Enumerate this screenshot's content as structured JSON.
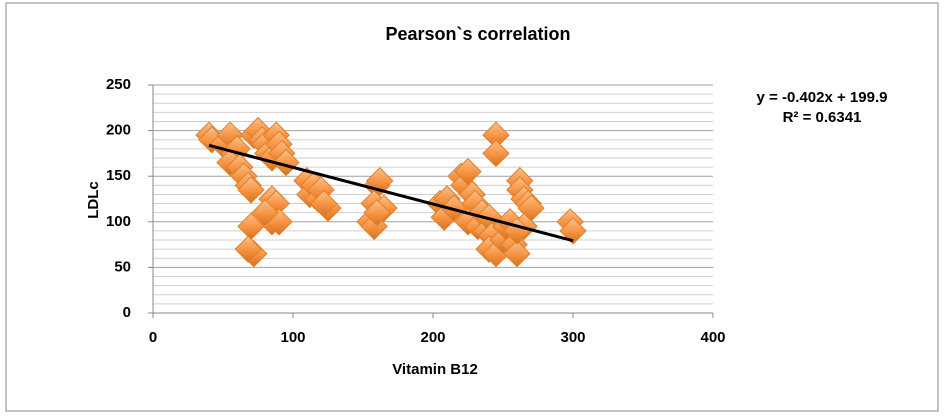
{
  "chart_data": {
    "type": "scatter",
    "title": "Pearson`s correlation",
    "x_label": "Vitamin B12",
    "y_label": "LDLc",
    "xlim": [
      0,
      400
    ],
    "xticks": [
      0,
      100,
      200,
      300,
      400
    ],
    "ylim": [
      0,
      250
    ],
    "yticks": [
      0,
      50,
      100,
      150,
      200,
      250
    ],
    "minor_yticks": [
      10,
      20,
      30,
      40,
      60,
      70,
      80,
      90,
      110,
      120,
      130,
      140,
      160,
      170,
      180,
      190,
      210,
      220,
      230,
      240
    ],
    "grid": true,
    "series": [
      {
        "name": "LDLc",
        "color": "#f79646",
        "x": [
          40,
          42,
          50,
          55,
          58,
          60,
          55,
          62,
          65,
          68,
          70,
          72,
          75,
          78,
          80,
          82,
          85,
          88,
          90,
          92,
          95,
          70,
          72,
          68,
          85,
          88,
          85,
          90,
          80,
          110,
          112,
          115,
          118,
          120,
          125,
          122,
          155,
          158,
          160,
          162,
          158,
          165,
          160,
          205,
          208,
          210,
          215,
          220,
          222,
          225,
          228,
          230,
          225,
          232,
          235,
          238,
          240,
          242,
          245,
          245,
          240,
          245,
          250,
          252,
          255,
          258,
          260,
          262,
          262,
          265,
          268,
          270,
          265,
          260,
          298,
          300
        ],
        "values": [
          195,
          190,
          185,
          195,
          175,
          180,
          165,
          160,
          150,
          140,
          135,
          195,
          200,
          190,
          185,
          175,
          170,
          195,
          185,
          175,
          165,
          95,
          65,
          70,
          125,
          120,
          100,
          100,
          110,
          145,
          130,
          140,
          125,
          135,
          115,
          120,
          100,
          95,
          140,
          145,
          120,
          115,
          110,
          120,
          105,
          125,
          115,
          150,
          140,
          155,
          130,
          120,
          100,
          95,
          110,
          90,
          105,
          85,
          195,
          175,
          70,
          65,
          80,
          95,
          100,
          75,
          65,
          145,
          135,
          125,
          120,
          115,
          95,
          90,
          100,
          90
        ]
      }
    ],
    "trendline": {
      "slope": -0.402,
      "intercept": 199.9,
      "x_range": [
        40,
        300
      ],
      "color": "#000000",
      "label": "y = -0.402x + 199.9",
      "r2_label": "R² = 0.6341"
    }
  }
}
